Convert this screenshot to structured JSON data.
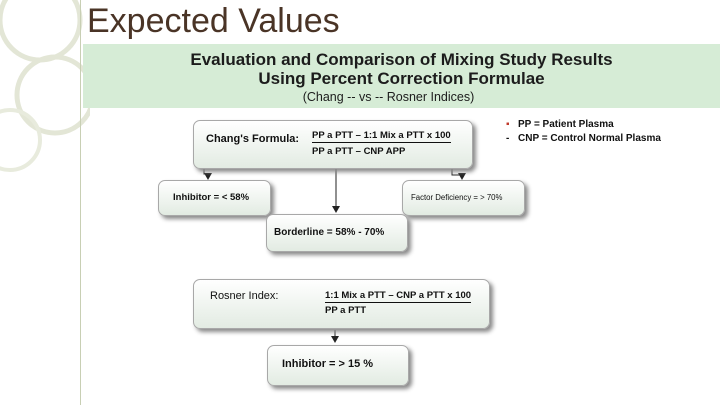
{
  "slide": {
    "title": "Expected Values"
  },
  "banner": {
    "line1": "Evaluation and Comparison of Mixing Study Results",
    "line2": "Using Percent Correction Formulae",
    "subtitle": "(Chang -- vs -- Rosner Indices)"
  },
  "chang": {
    "label": "Chang's Formula:",
    "numerator": "PP a PTT – 1:1 Mix a PTT x 100",
    "denominator": "PP a PTT – CNP APP"
  },
  "legend": {
    "items": [
      {
        "marker": "▪",
        "text": "PP = Patient Plasma"
      },
      {
        "marker": "-",
        "text": "CNP = Control Normal Plasma"
      }
    ]
  },
  "results": {
    "inhibitor": "Inhibitor = < 58%",
    "factor": "Factor Deficiency = > 70%",
    "borderline": "Borderline = 58% - 70%"
  },
  "rosner": {
    "label": "Rosner Index:",
    "numerator": "1:1 Mix a PTT – CNP a PTT x 100",
    "denominator": "PP a PTT",
    "result": "Inhibitor = > 15 %"
  },
  "colors": {
    "banner": "#d6ecd6",
    "box_bottom": "#e2ebe2",
    "title": "#4a3426",
    "bullet": "#c0392b"
  }
}
